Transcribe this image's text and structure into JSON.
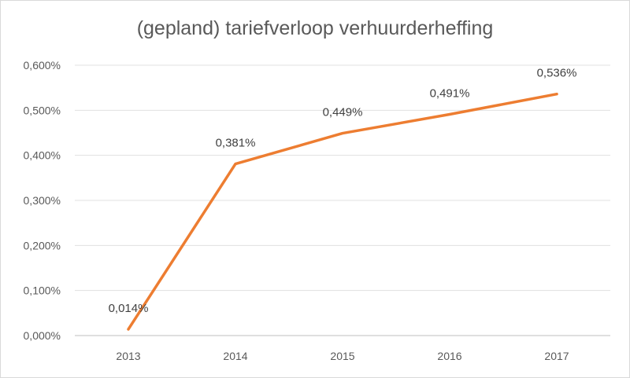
{
  "chart_data": {
    "type": "line",
    "title": "(gepland) tariefverloop verhuurderheffing",
    "xlabel": "",
    "ylabel": "",
    "categories": [
      "2013",
      "2014",
      "2015",
      "2016",
      "2017"
    ],
    "series": [
      {
        "values": [
          0.014,
          0.381,
          0.449,
          0.491,
          0.536
        ],
        "data_labels": [
          "0,014%",
          "0,381%",
          "0,449%",
          "0,491%",
          "0,536%"
        ],
        "color": "#ed7d31"
      }
    ],
    "ylim": [
      0,
      0.6
    ],
    "yticks": [
      0,
      0.1,
      0.2,
      0.3,
      0.4,
      0.5,
      0.6
    ],
    "ytick_labels": [
      "0,000%",
      "0,100%",
      "0,200%",
      "0,300%",
      "0,400%",
      "0,500%",
      "0,600%"
    ],
    "grid": true,
    "legend": "none"
  }
}
